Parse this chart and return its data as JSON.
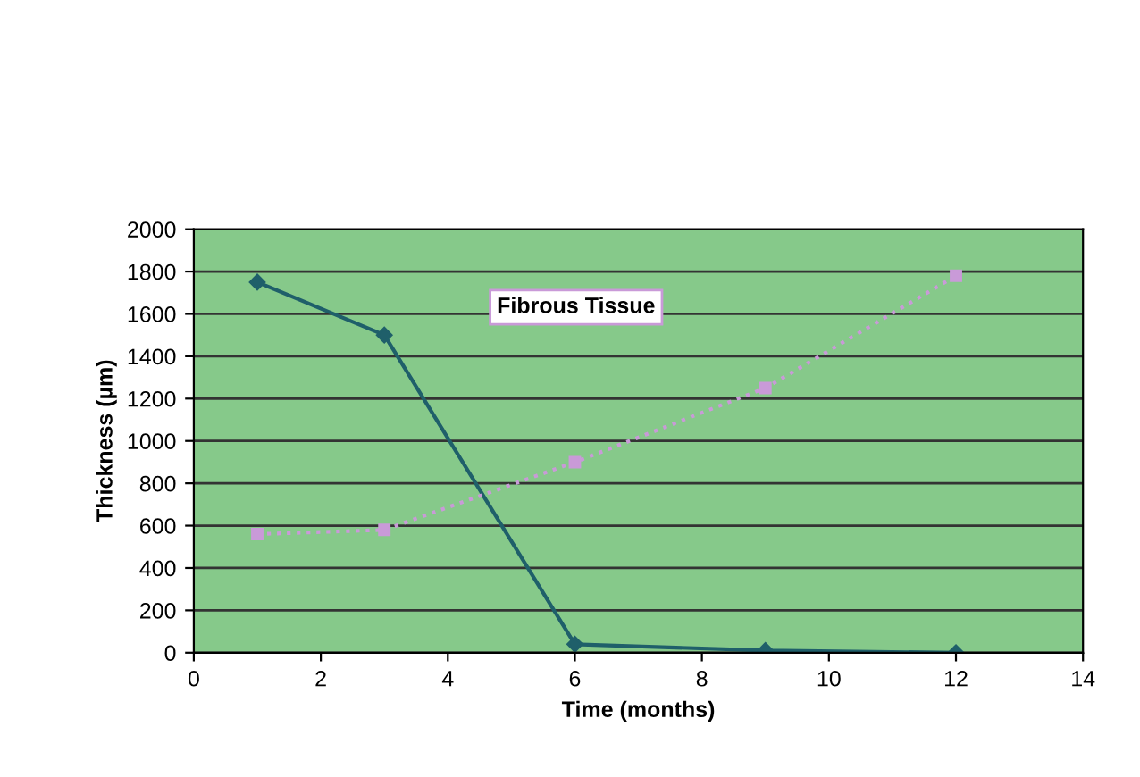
{
  "chart_data": {
    "type": "line",
    "xlabel": "Time (months)",
    "ylabel": "Thickness (µm)",
    "xlim": [
      0,
      14
    ],
    "xticks": [
      0,
      2,
      4,
      6,
      8,
      10,
      12,
      14
    ],
    "ylim": [
      0,
      2000
    ],
    "yticks": [
      0,
      200,
      400,
      600,
      800,
      1000,
      1200,
      1400,
      1600,
      1800,
      2000
    ],
    "grid": "y",
    "series": [
      {
        "color": "#1f5f6a",
        "x": [
          1,
          3,
          6,
          9,
          12
        ],
        "values": [
          1750,
          1500,
          40,
          10,
          0
        ],
        "marker": "diamond",
        "line_style": "solid"
      },
      {
        "name": "Fibrous Tissue",
        "color": "#c99ad8",
        "x": [
          1,
          3,
          6,
          9,
          12
        ],
        "values": [
          560,
          580,
          900,
          1250,
          1780
        ],
        "marker": "square",
        "line_style": "dotted"
      }
    ]
  }
}
